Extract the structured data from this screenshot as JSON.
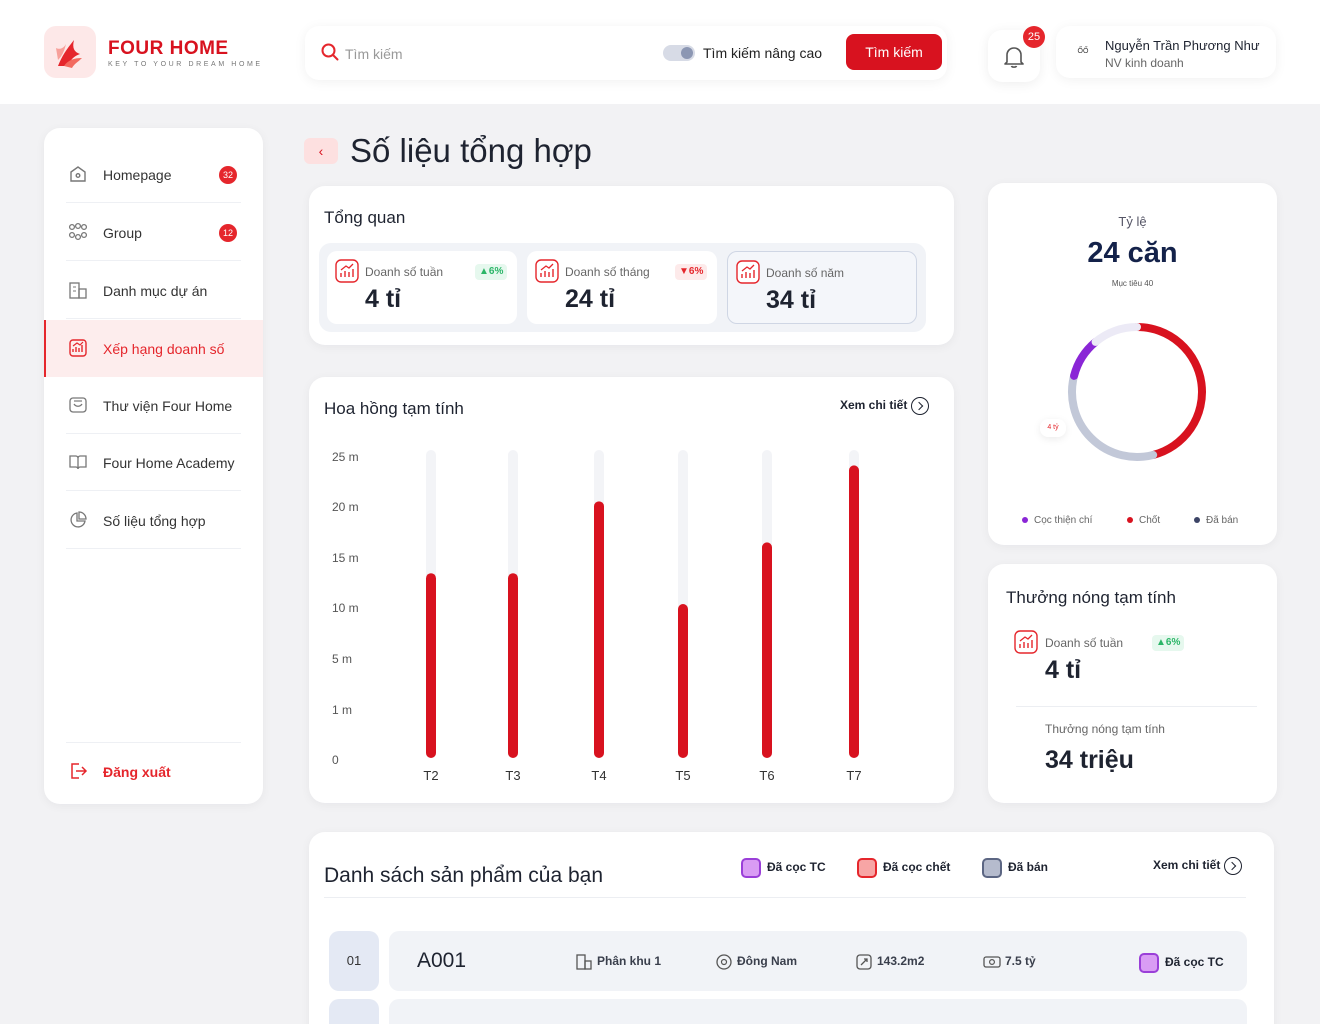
{
  "brand": {
    "name": "FOUR HOME",
    "tagline": "KEY TO YOUR DREAM HOME"
  },
  "search": {
    "placeholder": "Tìm kiếm",
    "advanced_label": "Tìm kiếm nâng cao",
    "advanced_on": true,
    "button_label": "Tìm kiếm"
  },
  "notifications": {
    "count": "25"
  },
  "user": {
    "avatar_text": "ỐỐ",
    "name": "Nguyễn Trần Phương Như",
    "role": "NV kinh doanh"
  },
  "sidebar": {
    "items": [
      {
        "label": "Homepage",
        "badge": "32",
        "icon": "home-icon"
      },
      {
        "label": "Group",
        "badge": "12",
        "icon": "group-icon"
      },
      {
        "label": "Danh mục dự án",
        "icon": "building-icon"
      },
      {
        "label": "Xếp hạng doanh số",
        "icon": "chart-icon",
        "active": true
      },
      {
        "label": "Thư viện Four Home",
        "icon": "library-icon"
      },
      {
        "label": "Four Home Academy",
        "icon": "book-icon"
      },
      {
        "label": "Số liệu tổng hợp",
        "icon": "pie-icon"
      }
    ],
    "logout_label": "Đăng xuất"
  },
  "page": {
    "title": "Số liệu tổng hợp",
    "back_label": "‹"
  },
  "overview": {
    "title": "Tổng quan",
    "kpis": [
      {
        "label": "Doanh số tuần",
        "value": "4 tỉ",
        "trend": "▲6%",
        "direction": "up"
      },
      {
        "label": "Doanh số tháng",
        "value": "24 tỉ",
        "trend": "▼6%",
        "direction": "down"
      },
      {
        "label": "Doanh số năm",
        "value": "34 tỉ",
        "selected": true
      }
    ]
  },
  "commission": {
    "title": "Hoa hồng tạm tính",
    "view_detail": "Xem chi tiết"
  },
  "chart_data": {
    "type": "bar",
    "categories": [
      "T2",
      "T3",
      "T4",
      "T5",
      "T6",
      "T7"
    ],
    "values": [
      18,
      18,
      25,
      15,
      21,
      28.5
    ],
    "track_max": 30,
    "y_ticks": [
      "0",
      "1 m",
      "5 m",
      "10 m",
      "15 m",
      "20 m",
      "25 m"
    ],
    "bar_color": "#d8121f",
    "track_color": "#f3f4f7",
    "grid": false
  },
  "ratio": {
    "label": "Tỷ lệ",
    "value": "24 căn",
    "target": "Mục tiêu 40",
    "tag": "4 tỷ",
    "segments": [
      {
        "name": "Cọc thiện chí",
        "color": "#8a26d6",
        "fraction": 0.1
      },
      {
        "name": "Chốt",
        "color": "#d8121f",
        "fraction": 0.46
      },
      {
        "name": "Đã bán",
        "color": "#c2c8d8",
        "fraction": 0.33
      }
    ],
    "legend": [
      {
        "label": "Cọc thiện chí",
        "color": "#8a26d6"
      },
      {
        "label": "Chốt",
        "color": "#d8121f"
      },
      {
        "label": "Đã bán",
        "color": "#3c4466"
      }
    ]
  },
  "bonus": {
    "title": "Thưởng nóng tạm tính",
    "kpi_label": "Doanh số tuần",
    "kpi_trend": "▲6%",
    "kpi_value": "4 tỉ",
    "bonus_label": "Thưởng nóng tạm tính",
    "bonus_value": "34 triệu"
  },
  "products": {
    "title": "Danh sách sản phẩm của bạn",
    "view_detail": "Xem chi tiết",
    "statuses": [
      {
        "label": "Đã cọc TC",
        "color": "#c98bf0",
        "border": "#9a3fd8"
      },
      {
        "label": "Đã cọc chết",
        "color": "#f59a9a",
        "border": "#e5262c"
      },
      {
        "label": "Đã bán",
        "color": "#a9b0c4",
        "border": "#5c6683"
      }
    ],
    "rows": [
      {
        "no": "01",
        "code": "A001",
        "zone": "Phân khu 1",
        "direction": "Đông Nam",
        "area": "143.2m2",
        "price": "7.5 tỷ",
        "status": "Đã cọc TC"
      }
    ]
  }
}
